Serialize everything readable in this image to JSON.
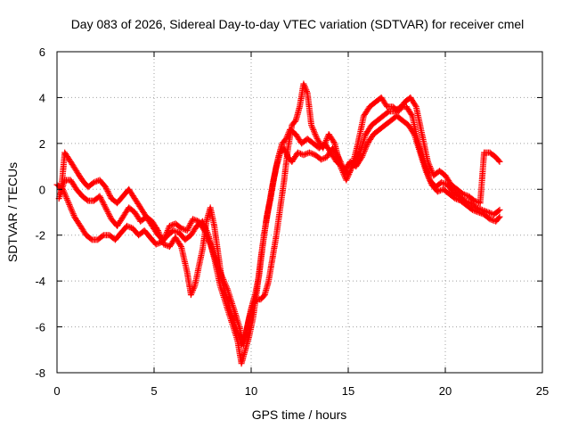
{
  "chart_data": {
    "type": "scatter",
    "title": "Day 083 of 2026, Sidereal Day-to-day VTEC variation (SDTVAR) for receiver cmel",
    "xlabel": "GPS time / hours",
    "ylabel": "SDTVAR / TECUs",
    "xlim": [
      0,
      25
    ],
    "ylim": [
      -8,
      6
    ],
    "xticks": [
      0,
      5,
      10,
      15,
      20,
      25
    ],
    "yticks": [
      -8,
      -6,
      -4,
      -2,
      0,
      2,
      4,
      6
    ],
    "marker": "+",
    "color": "#ff0000",
    "grid": true,
    "legend": "none",
    "series": [
      {
        "tracks": [
          [
            [
              0.0,
              0.2
            ],
            [
              0.3,
              0.0
            ],
            [
              0.6,
              -0.6
            ],
            [
              0.9,
              -1.2
            ],
            [
              1.2,
              -1.6
            ],
            [
              1.5,
              -2.0
            ],
            [
              1.8,
              -2.2
            ],
            [
              2.1,
              -2.2
            ],
            [
              2.4,
              -2.0
            ],
            [
              2.7,
              -2.0
            ],
            [
              3.0,
              -2.2
            ],
            [
              3.3,
              -1.9
            ],
            [
              3.6,
              -1.6
            ],
            [
              3.9,
              -1.7
            ],
            [
              4.2,
              -2.0
            ],
            [
              4.5,
              -1.8
            ],
            [
              4.8,
              -2.1
            ],
            [
              5.1,
              -2.4
            ],
            [
              5.4,
              -2.3
            ],
            [
              5.7,
              -2.0
            ],
            [
              6.0,
              -1.8
            ],
            [
              6.3,
              -1.9
            ],
            [
              6.6,
              -2.2
            ],
            [
              6.9,
              -2.0
            ],
            [
              7.2,
              -1.6
            ],
            [
              7.5,
              -1.4
            ],
            [
              7.8,
              -2.0
            ],
            [
              8.1,
              -3.0
            ],
            [
              8.4,
              -4.2
            ],
            [
              8.7,
              -5.0
            ],
            [
              9.0,
              -5.8
            ],
            [
              9.3,
              -6.6
            ],
            [
              9.5,
              -7.6
            ],
            [
              9.7,
              -7.0
            ],
            [
              9.9,
              -6.4
            ],
            [
              10.1,
              -5.6
            ],
            [
              10.3,
              -4.4
            ],
            [
              10.5,
              -3.0
            ],
            [
              10.7,
              -1.8
            ],
            [
              10.9,
              -0.8
            ],
            [
              11.1,
              0.2
            ],
            [
              11.3,
              1.0
            ],
            [
              11.5,
              1.6
            ],
            [
              11.7,
              1.8
            ],
            [
              11.9,
              1.4
            ],
            [
              12.1,
              1.2
            ],
            [
              12.4,
              1.6
            ],
            [
              12.7,
              1.5
            ],
            [
              13.0,
              1.6
            ],
            [
              13.3,
              1.5
            ],
            [
              13.6,
              1.3
            ],
            [
              13.9,
              1.4
            ],
            [
              14.2,
              1.8
            ],
            [
              14.5,
              1.4
            ],
            [
              14.8,
              0.8
            ],
            [
              15.1,
              1.2
            ],
            [
              15.4,
              1.0
            ],
            [
              15.7,
              1.4
            ],
            [
              16.0,
              2.0
            ],
            [
              16.3,
              2.4
            ],
            [
              16.6,
              2.6
            ],
            [
              16.9,
              2.8
            ],
            [
              17.2,
              3.0
            ],
            [
              17.5,
              3.2
            ],
            [
              17.8,
              3.0
            ],
            [
              18.1,
              2.8
            ],
            [
              18.4,
              2.4
            ],
            [
              18.7,
              1.6
            ],
            [
              19.0,
              0.8
            ],
            [
              19.3,
              0.2
            ],
            [
              19.6,
              -0.1
            ],
            [
              19.9,
              0.0
            ],
            [
              20.2,
              -0.2
            ],
            [
              20.5,
              -0.4
            ],
            [
              20.8,
              -0.5
            ],
            [
              21.1,
              -0.7
            ],
            [
              21.4,
              -0.9
            ],
            [
              21.7,
              -1.0
            ],
            [
              22.0,
              -1.1
            ],
            [
              22.3,
              -1.3
            ],
            [
              22.6,
              -1.4
            ],
            [
              22.8,
              -1.2
            ]
          ],
          [
            [
              0.1,
              -0.4
            ],
            [
              0.4,
              0.4
            ],
            [
              0.7,
              0.4
            ],
            [
              1.0,
              0.0
            ],
            [
              1.3,
              -0.3
            ],
            [
              1.6,
              -0.5
            ],
            [
              1.9,
              -0.5
            ],
            [
              2.2,
              -0.3
            ],
            [
              2.5,
              -0.8
            ],
            [
              2.8,
              -1.3
            ],
            [
              3.1,
              -1.6
            ],
            [
              3.4,
              -1.2
            ],
            [
              3.7,
              -0.8
            ],
            [
              4.0,
              -1.0
            ],
            [
              4.3,
              -1.4
            ],
            [
              4.6,
              -1.2
            ],
            [
              4.9,
              -1.6
            ],
            [
              5.2,
              -2.0
            ],
            [
              5.5,
              -2.2
            ],
            [
              5.8,
              -1.6
            ],
            [
              6.1,
              -1.5
            ],
            [
              6.4,
              -1.7
            ],
            [
              6.7,
              -1.8
            ],
            [
              7.0,
              -1.3
            ],
            [
              7.3,
              -1.4
            ],
            [
              7.6,
              -1.8
            ],
            [
              7.9,
              -2.4
            ],
            [
              8.2,
              -3.2
            ],
            [
              8.5,
              -3.8
            ],
            [
              8.8,
              -4.4
            ],
            [
              9.1,
              -5.2
            ],
            [
              9.4,
              -6.0
            ],
            [
              9.6,
              -6.8
            ],
            [
              9.8,
              -6.0
            ],
            [
              10.0,
              -5.2
            ],
            [
              10.2,
              -4.6
            ],
            [
              10.4,
              -3.8
            ],
            [
              10.6,
              -2.4
            ],
            [
              10.8,
              -1.2
            ],
            [
              11.0,
              -0.4
            ],
            [
              11.2,
              0.6
            ],
            [
              11.4,
              1.4
            ],
            [
              11.6,
              2.0
            ],
            [
              11.8,
              2.2
            ],
            [
              12.0,
              2.6
            ],
            [
              12.3,
              2.4
            ],
            [
              12.6,
              2.0
            ],
            [
              12.9,
              2.2
            ],
            [
              13.2,
              2.0
            ],
            [
              13.5,
              1.8
            ],
            [
              13.8,
              2.0
            ],
            [
              14.1,
              1.6
            ],
            [
              14.4,
              1.2
            ],
            [
              14.7,
              1.0
            ],
            [
              15.0,
              0.6
            ],
            [
              15.3,
              1.2
            ],
            [
              15.6,
              1.6
            ],
            [
              15.9,
              2.4
            ],
            [
              16.2,
              2.8
            ],
            [
              16.5,
              3.0
            ],
            [
              16.8,
              3.2
            ],
            [
              17.1,
              3.4
            ],
            [
              17.4,
              3.4
            ],
            [
              17.7,
              3.6
            ],
            [
              18.0,
              3.6
            ],
            [
              18.3,
              3.2
            ],
            [
              18.6,
              2.0
            ],
            [
              18.9,
              1.2
            ],
            [
              19.2,
              0.4
            ],
            [
              19.5,
              0.1
            ],
            [
              19.8,
              0.3
            ],
            [
              20.1,
              0.2
            ],
            [
              20.4,
              -0.1
            ],
            [
              20.7,
              -0.3
            ],
            [
              21.0,
              -0.5
            ],
            [
              21.3,
              -0.6
            ],
            [
              21.6,
              -0.8
            ],
            [
              21.9,
              -0.9
            ],
            [
              22.2,
              -1.0
            ],
            [
              22.5,
              -1.1
            ],
            [
              22.8,
              -0.9
            ]
          ],
          [
            [
              0.2,
              -0.2
            ],
            [
              0.4,
              1.6
            ],
            [
              0.7,
              1.2
            ],
            [
              1.0,
              0.8
            ],
            [
              1.3,
              0.4
            ],
            [
              1.6,
              0.1
            ],
            [
              1.9,
              0.3
            ],
            [
              2.2,
              0.4
            ],
            [
              2.5,
              0.1
            ],
            [
              2.8,
              -0.4
            ],
            [
              3.1,
              -0.6
            ],
            [
              3.4,
              -0.3
            ],
            [
              3.7,
              0.0
            ],
            [
              4.0,
              -0.4
            ],
            [
              4.3,
              -0.8
            ],
            [
              4.6,
              -1.2
            ],
            [
              4.9,
              -1.4
            ],
            [
              5.2,
              -1.8
            ],
            [
              5.5,
              -2.4
            ],
            [
              5.8,
              -2.5
            ],
            [
              6.1,
              -2.1
            ],
            [
              6.4,
              -2.5
            ],
            [
              6.7,
              -3.6
            ],
            [
              6.9,
              -4.6
            ],
            [
              7.1,
              -4.2
            ],
            [
              7.3,
              -3.4
            ],
            [
              7.5,
              -2.6
            ],
            [
              7.7,
              -1.4
            ],
            [
              7.9,
              -0.8
            ],
            [
              8.1,
              -1.6
            ],
            [
              8.3,
              -2.8
            ],
            [
              8.5,
              -4.0
            ],
            [
              8.7,
              -4.6
            ],
            [
              8.9,
              -5.2
            ],
            [
              9.1,
              -5.8
            ],
            [
              9.3,
              -6.2
            ],
            [
              9.5,
              -6.8
            ],
            [
              9.7,
              -6.4
            ],
            [
              9.9,
              -5.6
            ],
            [
              10.1,
              -5.0
            ],
            [
              10.3,
              -4.8
            ],
            [
              10.5,
              -4.8
            ],
            [
              10.7,
              -4.6
            ],
            [
              10.9,
              -4.0
            ],
            [
              11.1,
              -3.0
            ],
            [
              11.3,
              -2.0
            ],
            [
              11.5,
              -0.8
            ],
            [
              11.7,
              0.4
            ],
            [
              11.9,
              1.8
            ],
            [
              12.1,
              2.8
            ],
            [
              12.3,
              3.0
            ],
            [
              12.5,
              3.6
            ],
            [
              12.7,
              4.6
            ],
            [
              12.9,
              4.2
            ],
            [
              13.1,
              2.8
            ],
            [
              13.4,
              2.2
            ],
            [
              13.7,
              1.8
            ],
            [
              14.0,
              2.4
            ],
            [
              14.3,
              2.0
            ],
            [
              14.6,
              1.0
            ],
            [
              14.9,
              0.4
            ],
            [
              15.2,
              1.0
            ],
            [
              15.5,
              2.0
            ],
            [
              15.8,
              3.2
            ],
            [
              16.1,
              3.6
            ],
            [
              16.4,
              3.8
            ],
            [
              16.7,
              4.0
            ],
            [
              17.0,
              3.6
            ],
            [
              17.3,
              3.6
            ],
            [
              17.6,
              3.4
            ],
            [
              17.9,
              3.8
            ],
            [
              18.2,
              4.0
            ],
            [
              18.5,
              3.6
            ],
            [
              18.8,
              2.4
            ],
            [
              19.1,
              1.2
            ],
            [
              19.4,
              0.6
            ],
            [
              19.7,
              0.8
            ],
            [
              20.0,
              0.6
            ],
            [
              20.3,
              0.2
            ],
            [
              20.6,
              0.0
            ],
            [
              20.9,
              -0.2
            ],
            [
              21.2,
              -0.3
            ],
            [
              21.5,
              -0.5
            ],
            [
              21.8,
              -0.6
            ],
            [
              22.0,
              1.6
            ],
            [
              22.3,
              1.6
            ],
            [
              22.6,
              1.4
            ],
            [
              22.8,
              1.2
            ]
          ]
        ]
      }
    ]
  }
}
